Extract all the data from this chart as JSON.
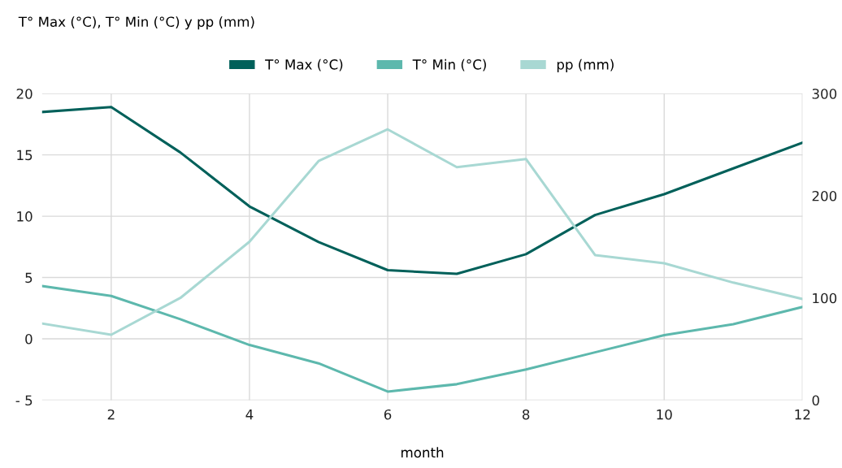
{
  "chart_data": {
    "type": "line",
    "title": "T° Max (°C), T° Min (°C) y pp (mm)",
    "xlabel": "month",
    "x": [
      1,
      2,
      3,
      4,
      5,
      6,
      7,
      8,
      9,
      10,
      11,
      12
    ],
    "series": [
      {
        "name": "T° Max (°C)",
        "color": "#00605a",
        "values": [
          18.5,
          18.9,
          15.2,
          10.8,
          7.9,
          5.6,
          5.3,
          6.9,
          10.1,
          11.8,
          13.9,
          16.0
        ]
      },
      {
        "name": "T° Min (°C)",
        "color": "#5db8ad",
        "values": [
          4.3,
          3.5,
          1.6,
          -0.5,
          -2.0,
          -4.3,
          -3.7,
          -2.5,
          -1.1,
          0.3,
          1.2,
          2.6
        ]
      },
      {
        "name": "pp (mm)",
        "color": "#a8d8d3",
        "axis": "y2",
        "values": [
          75,
          64,
          100,
          155,
          234,
          265,
          228,
          236,
          142,
          134,
          115,
          99
        ]
      }
    ],
    "xlim": [
      1,
      12
    ],
    "xticks": [
      2,
      4,
      6,
      8,
      10,
      12
    ],
    "ylim": [
      -5,
      20
    ],
    "yticks": [
      {
        "value": -5,
        "label": "- 5"
      },
      0,
      5,
      10,
      15,
      20
    ],
    "y2lim": [
      0,
      300
    ],
    "y2ticks": [
      0,
      100,
      200,
      300
    ],
    "grid": true,
    "legend": "top",
    "marker": "none",
    "line_style": "solid"
  }
}
